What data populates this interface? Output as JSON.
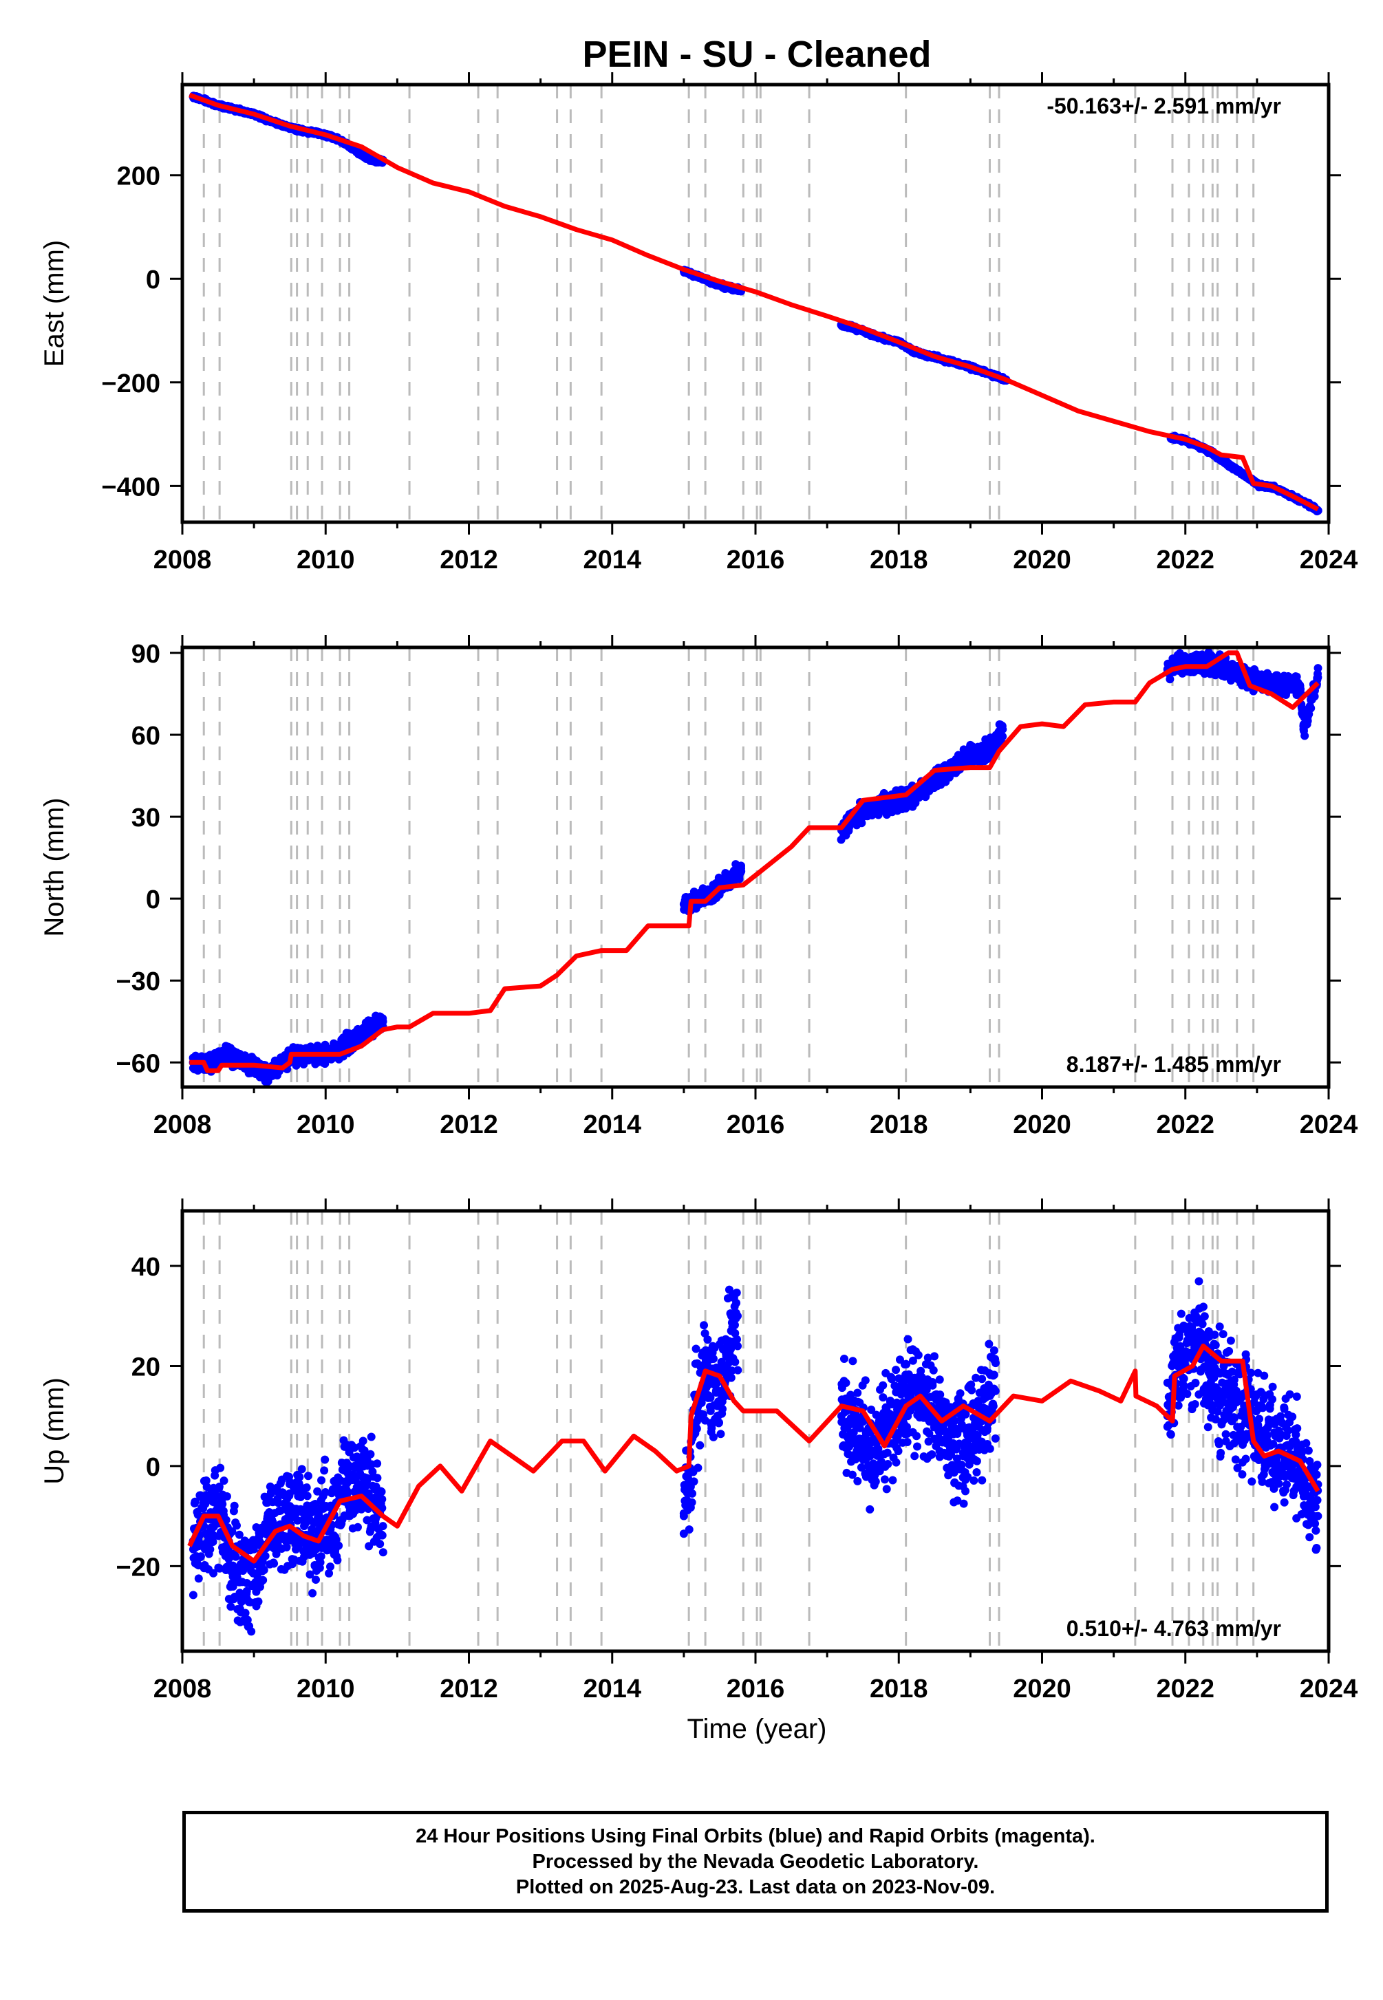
{
  "title": "PEIN  - SU - Cleaned",
  "x_axis_label": "Time (year)",
  "x_ticks": [
    "2008",
    "2010",
    "2012",
    "2014",
    "2016",
    "2018",
    "2020",
    "2022",
    "2024"
  ],
  "colors": {
    "observations": "#0000ff",
    "model": "#ff0000",
    "event_lines": "#bbbbbb"
  },
  "event_years": [
    2008.3,
    2008.52,
    2009.52,
    2009.6,
    2009.75,
    2009.95,
    2010.2,
    2010.33,
    2011.17,
    2012.13,
    2012.4,
    2013.23,
    2013.42,
    2013.85,
    2015.07,
    2015.3,
    2015.83,
    2016.02,
    2016.07,
    2016.75,
    2018.1,
    2019.27,
    2019.4,
    2021.3,
    2021.82,
    2022.05,
    2022.25,
    2022.38,
    2022.45,
    2022.72,
    2022.95
  ],
  "footer": {
    "line1": "24 Hour Positions Using Final Orbits (blue) and Rapid Orbits (magenta).",
    "line2": "Processed by the Nevada Geodetic Laboratory.",
    "line3": "Plotted on 2025-Aug-23. Last data on 2023-Nov-09."
  },
  "chart_data": [
    {
      "type": "scatter",
      "component": "east",
      "ylabel": "East (mm)",
      "xlim": [
        2008,
        2024
      ],
      "ylim": [
        -470,
        375
      ],
      "y_ticks": [
        "200",
        "0",
        "−200",
        "−400"
      ],
      "y_tick_values": [
        200,
        0,
        -200,
        -400
      ],
      "rate_label": "-50.163+/- 2.591 mm/yr",
      "series": [
        {
          "kind": "observations",
          "x": [
            2008.15,
            2008.3,
            2008.5,
            2008.7,
            2009.0,
            2009.3,
            2009.5,
            2009.7,
            2010.0,
            2010.2,
            2010.4,
            2010.6,
            2010.8,
            2015.0,
            2015.2,
            2015.4,
            2015.6,
            2015.8,
            2017.2,
            2017.4,
            2017.6,
            2017.8,
            2018.0,
            2018.2,
            2018.9,
            2019.3,
            2019.5,
            2021.8,
            2022.0,
            2022.3,
            2023.05,
            2023.2,
            2023.5,
            2023.7,
            2023.85
          ],
          "y": [
            352,
            345,
            335,
            328,
            318,
            302,
            292,
            286,
            278,
            268,
            250,
            232,
            226,
            15,
            5,
            -8,
            -16,
            -22,
            -88,
            -96,
            -106,
            -115,
            -122,
            -140,
            -166,
            -185,
            -195,
            -306,
            -312,
            -330,
            -400,
            -402,
            -420,
            -435,
            -447
          ]
        },
        {
          "kind": "model",
          "x": [
            2008.1,
            2008.5,
            2009.0,
            2009.5,
            2010.0,
            2010.5,
            2011.0,
            2011.5,
            2012.0,
            2012.5,
            2013.0,
            2013.5,
            2014.0,
            2014.5,
            2015.0,
            2015.5,
            2016.0,
            2016.5,
            2017.0,
            2017.5,
            2018.0,
            2018.5,
            2019.0,
            2019.5,
            2020.0,
            2020.5,
            2021.0,
            2021.5,
            2022.0,
            2022.3,
            2022.5,
            2022.8,
            2022.95,
            2023.2,
            2023.5,
            2023.85
          ],
          "y": [
            355,
            335,
            318,
            295,
            278,
            255,
            215,
            185,
            168,
            140,
            120,
            95,
            75,
            45,
            18,
            -5,
            -25,
            -50,
            -72,
            -95,
            -122,
            -150,
            -170,
            -195,
            -225,
            -255,
            -275,
            -295,
            -310,
            -325,
            -340,
            -345,
            -395,
            -400,
            -420,
            -445
          ]
        }
      ]
    },
    {
      "type": "scatter",
      "component": "north",
      "ylabel": "North (mm)",
      "xlim": [
        2008,
        2024
      ],
      "ylim": [
        -69,
        92
      ],
      "y_ticks": [
        "90",
        "60",
        "30",
        "0",
        "−30",
        "−60"
      ],
      "y_tick_values": [
        90,
        60,
        30,
        0,
        -30,
        -60
      ],
      "rate_label": "8.187+/- 1.485 mm/yr",
      "series": [
        {
          "kind": "observations",
          "x": [
            2008.15,
            2008.4,
            2008.6,
            2008.8,
            2009.0,
            2009.2,
            2009.5,
            2009.7,
            2010.0,
            2010.2,
            2010.4,
            2010.6,
            2010.8,
            2015.0,
            2015.2,
            2015.4,
            2015.6,
            2015.8,
            2017.2,
            2017.4,
            2017.6,
            2017.8,
            2018.0,
            2018.2,
            2018.4,
            2018.9,
            2019.3,
            2019.45,
            2021.75,
            2021.9,
            2022.1,
            2022.3,
            2022.95,
            2023.1,
            2023.6,
            2023.65,
            2023.85
          ],
          "y": [
            -60,
            -61,
            -57,
            -60,
            -61,
            -64,
            -58,
            -57,
            -57,
            -55,
            -52,
            -48,
            -45,
            -2,
            -1,
            2,
            7,
            10,
            25,
            30,
            33,
            35,
            36,
            38,
            41,
            51,
            55,
            62,
            84,
            86,
            85,
            87,
            80,
            79,
            78,
            62,
            81
          ]
        },
        {
          "kind": "model",
          "x": [
            2008.1,
            2008.3,
            2008.35,
            2008.5,
            2008.55,
            2009.0,
            2009.4,
            2009.5,
            2009.52,
            2009.75,
            2010.0,
            2010.2,
            2010.5,
            2010.8,
            2011.0,
            2011.17,
            2011.5,
            2012.0,
            2012.3,
            2012.5,
            2013.0,
            2013.23,
            2013.5,
            2013.85,
            2014.2,
            2014.5,
            2015.07,
            2015.1,
            2015.3,
            2015.5,
            2015.83,
            2016.07,
            2016.5,
            2016.75,
            2017.2,
            2017.5,
            2018.1,
            2018.5,
            2019.0,
            2019.27,
            2019.4,
            2019.7,
            2020.0,
            2020.3,
            2020.6,
            2021.0,
            2021.3,
            2021.5,
            2021.82,
            2022.0,
            2022.3,
            2022.6,
            2022.72,
            2022.9,
            2023.2,
            2023.5,
            2023.85
          ],
          "y": [
            -60,
            -60,
            -63,
            -63,
            -61,
            -61,
            -62,
            -60,
            -57,
            -57,
            -57,
            -57,
            -54,
            -48,
            -47,
            -47,
            -42,
            -42,
            -41,
            -33,
            -32,
            -28,
            -21,
            -19,
            -19,
            -10,
            -10,
            -1,
            -1,
            4,
            5,
            10,
            19,
            26,
            26,
            36,
            38,
            47,
            48,
            48,
            54,
            63,
            64,
            63,
            71,
            72,
            72,
            79,
            84,
            85,
            85,
            90,
            90,
            78,
            75,
            70,
            79
          ]
        }
      ]
    },
    {
      "type": "scatter",
      "component": "up",
      "ylabel": "Up (mm)",
      "xlim": [
        2008,
        2024
      ],
      "ylim": [
        -37,
        51
      ],
      "y_ticks": [
        "40",
        "20",
        "0",
        "−20"
      ],
      "y_tick_values": [
        40,
        20,
        0,
        -20
      ],
      "rate_label": "0.510+/- 4.763 mm/yr",
      "series": [
        {
          "kind": "observations",
          "x": [
            2008.15,
            2008.3,
            2008.5,
            2008.7,
            2008.9,
            2009.1,
            2009.3,
            2009.5,
            2009.7,
            2009.9,
            2010.1,
            2010.3,
            2010.5,
            2010.7,
            2010.8,
            2015.0,
            2015.15,
            2015.3,
            2015.45,
            2015.6,
            2015.75,
            2017.2,
            2017.4,
            2017.6,
            2017.8,
            2018.0,
            2018.2,
            2018.9,
            2019.2,
            2019.35,
            2021.75,
            2021.85,
            2022.0,
            2022.2,
            2022.35,
            2023.0,
            2023.1,
            2023.5,
            2023.7,
            2023.85
          ],
          "y": [
            -15,
            -12,
            -8,
            -18,
            -25,
            -16,
            -12,
            -8,
            -12,
            -14,
            -10,
            -5,
            -2,
            -8,
            -12,
            -10,
            8,
            18,
            15,
            20,
            30,
            10,
            8,
            2,
            6,
            12,
            15,
            2,
            10,
            15,
            10,
            18,
            22,
            25,
            18,
            8,
            5,
            2,
            -4,
            -10
          ]
        },
        {
          "kind": "model",
          "x": [
            2008.1,
            2008.3,
            2008.5,
            2008.7,
            2009.0,
            2009.3,
            2009.5,
            2009.7,
            2009.9,
            2010.2,
            2010.5,
            2010.8,
            2011.0,
            2011.3,
            2011.6,
            2011.9,
            2012.3,
            2012.6,
            2012.9,
            2013.3,
            2013.6,
            2013.9,
            2014.3,
            2014.6,
            2014.9,
            2015.07,
            2015.1,
            2015.3,
            2015.5,
            2015.7,
            2015.83,
            2016.1,
            2016.3,
            2016.6,
            2016.75,
            2017.2,
            2017.5,
            2017.8,
            2018.1,
            2018.3,
            2018.6,
            2018.9,
            2019.27,
            2019.6,
            2020.0,
            2020.4,
            2020.8,
            2021.1,
            2021.3,
            2021.31,
            2021.6,
            2021.82,
            2021.85,
            2022.1,
            2022.25,
            2022.5,
            2022.8,
            2022.95,
            2023.1,
            2023.3,
            2023.6,
            2023.85
          ],
          "y": [
            -16,
            -10,
            -10,
            -16,
            -19,
            -13,
            -12,
            -14,
            -15,
            -7,
            -6,
            -10,
            -12,
            -4,
            0,
            -5,
            5,
            2,
            -1,
            5,
            5,
            -1,
            6,
            3,
            -1,
            0,
            10,
            19,
            18,
            13,
            11,
            11,
            11,
            7,
            5,
            12,
            11,
            4,
            12,
            14,
            9,
            12,
            9,
            14,
            13,
            17,
            15,
            13,
            19,
            14,
            12,
            9,
            18,
            20,
            24,
            21,
            21,
            5,
            2,
            3,
            1,
            -5
          ]
        }
      ]
    }
  ]
}
